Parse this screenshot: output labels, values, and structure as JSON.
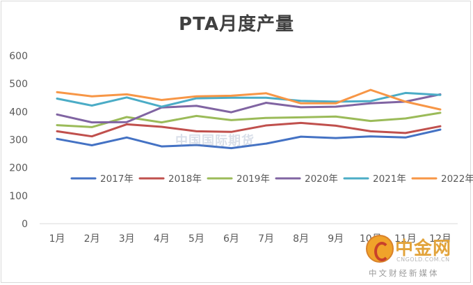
{
  "chart_data": {
    "type": "line",
    "title": "PTA月度产量",
    "categories": [
      "1月",
      "2月",
      "3月",
      "4月",
      "5月",
      "6月",
      "7月",
      "8月",
      "9月",
      "10月",
      "11月",
      "12月"
    ],
    "ylim": [
      0,
      600
    ],
    "yticks": [
      0,
      100,
      200,
      300,
      400,
      500,
      600
    ],
    "grid": false,
    "legend_position": "center",
    "series": [
      {
        "name": "2017年",
        "color": "#4472c4",
        "values": [
          303,
          280,
          308,
          276,
          281,
          270,
          286,
          311,
          306,
          312,
          308,
          336
        ]
      },
      {
        "name": "2018年",
        "color": "#c0504d",
        "values": [
          330,
          312,
          355,
          346,
          330,
          328,
          351,
          360,
          350,
          330,
          324,
          348
        ]
      },
      {
        "name": "2019年",
        "color": "#9bbb59",
        "values": [
          352,
          345,
          381,
          362,
          385,
          370,
          378,
          380,
          383,
          367,
          376,
          396
        ]
      },
      {
        "name": "2020年",
        "color": "#8064a2",
        "values": [
          390,
          362,
          363,
          415,
          421,
          398,
          432,
          416,
          418,
          430,
          436,
          462
        ]
      },
      {
        "name": "2021年",
        "color": "#4bacc6",
        "values": [
          447,
          422,
          451,
          418,
          448,
          450,
          450,
          439,
          436,
          438,
          467,
          460
        ]
      },
      {
        "name": "2022年",
        "color": "#f79646",
        "values": [
          470,
          455,
          462,
          442,
          455,
          457,
          466,
          430,
          430,
          478,
          436,
          408
        ]
      }
    ]
  },
  "watermark": {
    "center_text": "中国国际期货",
    "brand": "中金网",
    "brand_url": "CNGOLD.COM.CN",
    "brand_tagline": "中文财经新媒体"
  }
}
